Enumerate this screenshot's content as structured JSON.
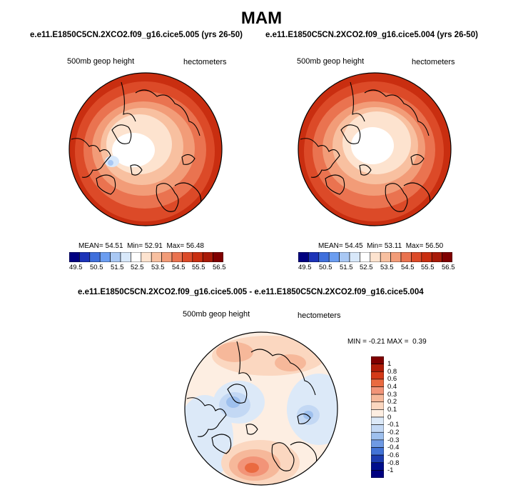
{
  "title": "MAM",
  "top_left": {
    "case_title": "e.e11.E1850C5CN.2XCO2.f09_g16.cice5.005 (yrs 26-50)",
    "variable": "500mb geop height",
    "units": "hectometers",
    "stats": {
      "mean_label": "MEAN=",
      "mean": "54.51",
      "min_label": "Min=",
      "min": "52.91",
      "max_label": "Max=",
      "max": "56.48"
    }
  },
  "top_right": {
    "case_title": "e.e11.E1850C5CN.2XCO2.f09_g16.cice5.004 (yrs 26-50)",
    "variable": "500mb geop height",
    "units": "hectometers",
    "stats": {
      "mean_label": "MEAN=",
      "mean": "54.45",
      "min_label": "Min=",
      "min": "53.11",
      "max_label": "Max=",
      "max": "56.50"
    }
  },
  "difference": {
    "case_title": "e.e11.E1850C5CN.2XCO2.f09_g16.cice5.005 - e.e11.E1850C5CN.2XCO2.f09_g16.cice5.004",
    "variable": "500mb geop height",
    "units": "hectometers",
    "stats": {
      "min_label": "MIN =",
      "min": "-0.21",
      "max_label": "MAX =",
      "max": "0.39"
    }
  },
  "colorbar_abs": {
    "ticks": [
      "49.5",
      "50.5",
      "51.5",
      "52.5",
      "53.5",
      "54.5",
      "55.5",
      "56.5"
    ],
    "colors": [
      "#000080",
      "#1c33b8",
      "#3f6fdc",
      "#6b9df0",
      "#a9c8f4",
      "#d8e8fa",
      "#ffffff",
      "#fde3cf",
      "#f8c0a0",
      "#f29c78",
      "#ea7350",
      "#dc4a28",
      "#c92e10",
      "#a81a08",
      "#800000"
    ]
  },
  "colorbar_diff": {
    "ticks": [
      "1",
      "0.8",
      "0.6",
      "0.4",
      "0.3",
      "0.2",
      "0.1",
      "0",
      "-0.1",
      "-0.2",
      "-0.3",
      "-0.4",
      "-0.6",
      "-0.8",
      "-1"
    ],
    "colors": [
      "#800000",
      "#b01c08",
      "#d43a18",
      "#ea6a40",
      "#f29478",
      "#f6b89a",
      "#fbd7c0",
      "#fdeee2",
      "#dce9f8",
      "#c3d8f4",
      "#9ec0ee",
      "#6f9ae4",
      "#4273d6",
      "#1c3cb0",
      "#000e8c",
      "#000080"
    ]
  }
}
